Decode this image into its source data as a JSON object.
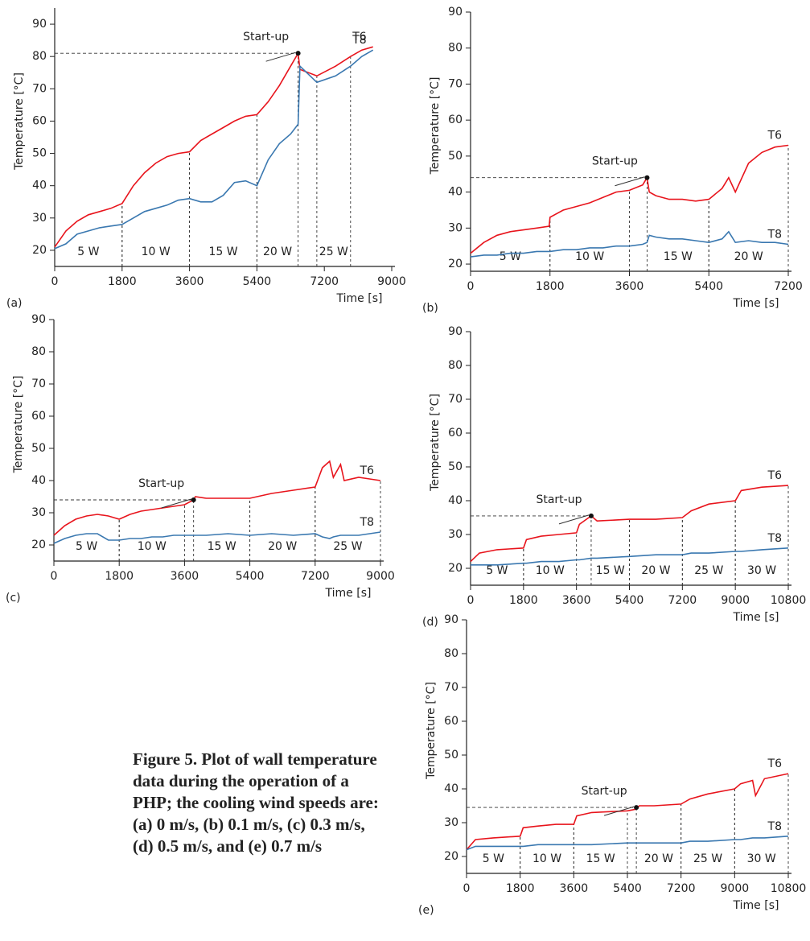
{
  "chart_data": [
    {
      "type": "line",
      "panel": "(a)",
      "xlabel": "Time [s]",
      "ylabel": "Temperature [°C]",
      "xlim": [
        0,
        9000
      ],
      "xticks": [
        0,
        1800,
        3600,
        5400,
        7200,
        9000
      ],
      "ylim": [
        15,
        95
      ],
      "yticks": [
        20,
        30,
        40,
        50,
        60,
        70,
        80,
        90
      ],
      "x": [
        0,
        300,
        600,
        900,
        1200,
        1500,
        1800,
        2100,
        2400,
        2700,
        3000,
        3300,
        3600,
        3900,
        4200,
        4500,
        4800,
        5100,
        5400,
        5700,
        6000,
        6300,
        6500,
        6550,
        7000,
        7500,
        7900,
        8200,
        8500
      ],
      "series": [
        {
          "name": "T6",
          "color": "#e8141c",
          "values": [
            21,
            26,
            29,
            31,
            32,
            33,
            34.5,
            40,
            44,
            47,
            49,
            50,
            50.5,
            54,
            56,
            58,
            60,
            61.5,
            62,
            66,
            71,
            77,
            81,
            76,
            74,
            77,
            80,
            82,
            83
          ]
        },
        {
          "name": "T8",
          "color": "#3a78b0",
          "values": [
            20.5,
            22,
            25,
            26,
            27,
            27.5,
            28,
            30,
            32,
            33,
            34,
            35.5,
            36,
            35,
            35,
            37,
            41,
            41.5,
            40,
            48,
            53,
            56,
            59,
            77,
            72,
            74,
            77,
            80,
            82
          ]
        }
      ],
      "phases": [
        {
          "label": "5 W",
          "start": 0,
          "end": 1800
        },
        {
          "label": "10 W",
          "start": 1800,
          "end": 3600
        },
        {
          "label": "15 W",
          "start": 3600,
          "end": 5400
        },
        {
          "label": "20 W",
          "start": 5400,
          "end": 6500
        },
        {
          "label": "25 W",
          "start": 7000,
          "end": 7900
        }
      ],
      "startup": {
        "label": "Start-up",
        "x": 6500,
        "y": 81
      }
    },
    {
      "type": "line",
      "panel": "(b)",
      "xlabel": "Time [s]",
      "ylabel": "Temperature [°C]",
      "xlim": [
        0,
        7200
      ],
      "xticks": [
        0,
        1800,
        3600,
        5400,
        7200
      ],
      "ylim": [
        18,
        90
      ],
      "yticks": [
        20,
        30,
        40,
        50,
        60,
        70,
        80,
        90
      ],
      "x": [
        0,
        300,
        600,
        900,
        1200,
        1500,
        1780,
        1800,
        2100,
        2400,
        2700,
        3000,
        3300,
        3600,
        3900,
        4000,
        4050,
        4200,
        4500,
        4800,
        5100,
        5400,
        5700,
        5850,
        6000,
        6300,
        6600,
        6900,
        7200
      ],
      "series": [
        {
          "name": "T6",
          "color": "#e8141c",
          "values": [
            23,
            26,
            28,
            29,
            29.5,
            30,
            30.5,
            33,
            35,
            36,
            37,
            38.5,
            40,
            40.5,
            42,
            44,
            40,
            39,
            38,
            38,
            37.5,
            38,
            41,
            44,
            40,
            48,
            51,
            52.5,
            53
          ]
        },
        {
          "name": "T8",
          "color": "#3a78b0",
          "values": [
            22,
            22.5,
            22.5,
            23,
            23,
            23.5,
            23.5,
            23.5,
            24,
            24,
            24.5,
            24.5,
            25,
            25,
            25.5,
            26,
            28,
            27.5,
            27,
            27,
            26.5,
            26,
            27,
            29,
            26,
            26.5,
            26,
            26,
            25.5
          ]
        }
      ],
      "phases": [
        {
          "label": "5 W",
          "start": 0,
          "end": 1800
        },
        {
          "label": "10 W",
          "start": 1800,
          "end": 3600
        },
        {
          "label": "15 W",
          "start": 4000,
          "end": 5400
        },
        {
          "label": "20 W",
          "start": 5400,
          "end": 7200
        }
      ],
      "startup": {
        "label": "Start-up",
        "x": 4000,
        "y": 44
      }
    },
    {
      "type": "line",
      "panel": "(c)",
      "xlabel": "Time [s]",
      "ylabel": "Temperature [°C]",
      "xlim": [
        0,
        9000
      ],
      "xticks": [
        0,
        1800,
        3600,
        5400,
        7200,
        9000
      ],
      "ylim": [
        15,
        90
      ],
      "yticks": [
        20,
        30,
        40,
        50,
        60,
        70,
        80,
        90
      ],
      "x": [
        0,
        300,
        600,
        900,
        1200,
        1500,
        1800,
        2100,
        2400,
        2700,
        3000,
        3300,
        3600,
        3850,
        3900,
        4200,
        4800,
        5400,
        6000,
        6600,
        7200,
        7400,
        7600,
        7700,
        7900,
        8000,
        8400,
        8700,
        9000
      ],
      "series": [
        {
          "name": "T6",
          "color": "#e8141c",
          "values": [
            23,
            26,
            28,
            29,
            29.5,
            29,
            28,
            29.5,
            30.5,
            31,
            31.5,
            32,
            32.5,
            34,
            35,
            34.5,
            34.5,
            34.5,
            36,
            37,
            38,
            44,
            46,
            41,
            45,
            40,
            41,
            40.5,
            40
          ]
        },
        {
          "name": "T8",
          "color": "#3a78b0",
          "values": [
            20.5,
            22,
            23,
            23.5,
            23.5,
            21.5,
            21.5,
            22,
            22,
            22.5,
            22.5,
            23,
            23,
            23,
            23,
            23,
            23.5,
            23,
            23.5,
            23,
            23.5,
            22.5,
            22,
            22.5,
            23,
            23,
            23,
            23.5,
            24
          ]
        }
      ],
      "phases": [
        {
          "label": "5 W",
          "start": 0,
          "end": 1800
        },
        {
          "label": "10 W",
          "start": 1800,
          "end": 3600
        },
        {
          "label": "15 W",
          "start": 3850,
          "end": 5400
        },
        {
          "label": "20 W",
          "start": 5400,
          "end": 7200
        },
        {
          "label": "25 W",
          "start": 7200,
          "end": 9000
        }
      ],
      "startup": {
        "label": "Start-up",
        "x": 3850,
        "y": 34
      }
    },
    {
      "type": "line",
      "panel": "(d)",
      "xlabel": "Time [s]",
      "ylabel": "Temperature [°C]",
      "xlim": [
        0,
        10800
      ],
      "xticks": [
        0,
        1800,
        3600,
        5400,
        7200,
        9000,
        10800
      ],
      "ylim": [
        15,
        90
      ],
      "yticks": [
        20,
        30,
        40,
        50,
        60,
        70,
        80,
        90
      ],
      "x": [
        0,
        300,
        900,
        1800,
        1900,
        2400,
        3000,
        3600,
        3700,
        4100,
        4300,
        5400,
        6300,
        7200,
        7500,
        8100,
        9000,
        9200,
        9900,
        10800
      ],
      "series": [
        {
          "name": "T6",
          "color": "#e8141c",
          "values": [
            22,
            24.5,
            25.5,
            26,
            28.5,
            29.5,
            30,
            30.5,
            33,
            35.5,
            34,
            34.5,
            34.5,
            35,
            37,
            39,
            40,
            43,
            44,
            44.5
          ]
        },
        {
          "name": "T8",
          "color": "#3a78b0",
          "values": [
            21,
            21,
            21,
            21.5,
            21.5,
            22,
            22,
            22.5,
            22.5,
            23,
            23,
            23.5,
            24,
            24,
            24.5,
            24.5,
            25,
            25,
            25.5,
            26
          ]
        }
      ],
      "phases": [
        {
          "label": "5 W",
          "start": 0,
          "end": 1800
        },
        {
          "label": "10 W",
          "start": 1800,
          "end": 3600
        },
        {
          "label": "15 W",
          "start": 4100,
          "end": 5400
        },
        {
          "label": "20 W",
          "start": 5400,
          "end": 7200
        },
        {
          "label": "25 W",
          "start": 7200,
          "end": 9000
        },
        {
          "label": "30 W",
          "start": 9000,
          "end": 10800
        }
      ],
      "startup": {
        "label": "Start-up",
        "x": 4100,
        "y": 35.5
      }
    },
    {
      "type": "line",
      "panel": "(e)",
      "xlabel": "Time [s]",
      "ylabel": "Temperature [°C]",
      "xlim": [
        0,
        10800
      ],
      "xticks": [
        0,
        1800,
        3600,
        5400,
        7200,
        9000,
        10800
      ],
      "ylim": [
        15,
        90
      ],
      "yticks": [
        20,
        30,
        40,
        50,
        60,
        70,
        80,
        90
      ],
      "x": [
        0,
        300,
        900,
        1800,
        1900,
        2400,
        3000,
        3600,
        3700,
        4200,
        5400,
        5700,
        5800,
        6300,
        7200,
        7500,
        8100,
        9000,
        9200,
        9600,
        9700,
        10000,
        10800
      ],
      "series": [
        {
          "name": "T6",
          "color": "#e8141c",
          "values": [
            22,
            25,
            25.5,
            26,
            28.5,
            29,
            29.5,
            29.5,
            32,
            33,
            33.5,
            34,
            35,
            35,
            35.5,
            37,
            38.5,
            40,
            41.5,
            42.5,
            38,
            43,
            44.5
          ]
        },
        {
          "name": "T8",
          "color": "#3a78b0",
          "values": [
            22,
            23,
            23,
            23,
            23,
            23.5,
            23.5,
            23.5,
            23.5,
            23.5,
            24,
            24,
            24,
            24,
            24,
            24.5,
            24.5,
            25,
            25,
            25.5,
            25.5,
            25.5,
            26
          ]
        }
      ],
      "phases": [
        {
          "label": "5 W",
          "start": 0,
          "end": 1800
        },
        {
          "label": "10 W",
          "start": 1800,
          "end": 3600
        },
        {
          "label": "15 W",
          "start": 3600,
          "end": 5400
        },
        {
          "label": "20 W",
          "start": 5700,
          "end": 7200
        },
        {
          "label": "25 W",
          "start": 7200,
          "end": 9000
        },
        {
          "label": "30 W",
          "start": 9000,
          "end": 10800
        }
      ],
      "startup": {
        "label": "Start-up",
        "x": 5700,
        "y": 34.5
      }
    }
  ],
  "caption": [
    "Figure 5. Plot of wall temperature",
    "data during the operation of a",
    "PHP; the cooling wind speeds are:",
    "(a) 0 m/s, (b) 0.1 m/s, (c) 0.3 m/s,",
    "(d) 0.5 m/s, and (e) 0.7 m/s"
  ]
}
